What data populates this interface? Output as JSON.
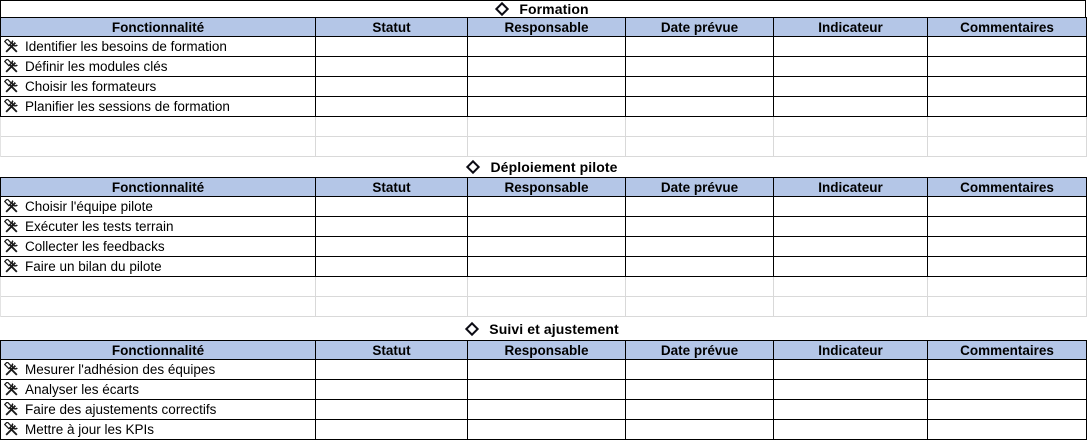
{
  "columns": [
    "Fonctionnalité",
    "Statut",
    "Responsable",
    "Date prévue",
    "Indicateur",
    "Commentaires"
  ],
  "sections": [
    {
      "title": "Formation",
      "rows": [
        "Identifier les besoins de formation",
        "Définir les modules clés",
        "Choisir les formateurs",
        "Planifier les sessions de formation"
      ]
    },
    {
      "title": "Déploiement pilote",
      "rows": [
        "Choisir l'équipe pilote",
        "Exécuter les tests terrain",
        "Collecter les feedbacks",
        "Faire un bilan du pilote"
      ]
    },
    {
      "title": "Suivi et ajustement",
      "rows": [
        "Mesurer l'adhésion des équipes",
        "Analyser les écarts",
        "Faire des ajustements correctifs",
        "Mettre à jour les KPIs"
      ]
    }
  ],
  "colors": {
    "header_bg": "#b4c6e7",
    "table_border": "#000000",
    "faint_grid": "#d9d9d9",
    "text": "#000000"
  },
  "icons": {
    "row_icon": "crossed-tools",
    "section_bullet": "diamond"
  }
}
